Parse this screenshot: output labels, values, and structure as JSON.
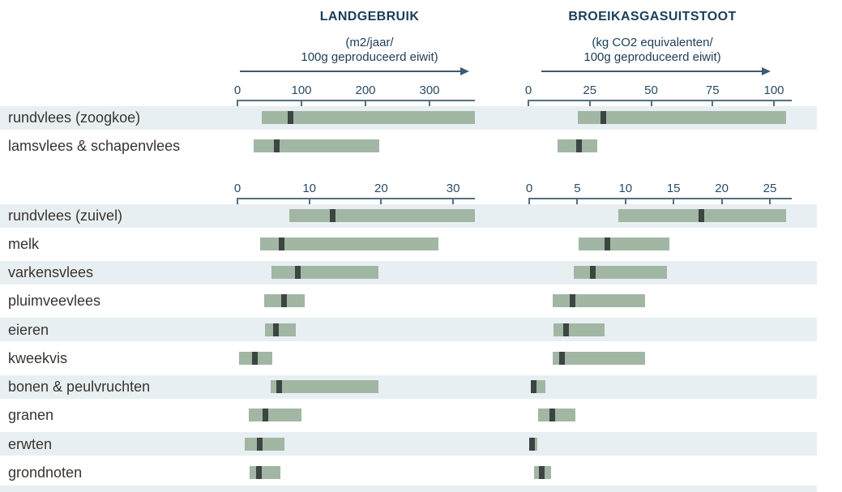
{
  "figure": {
    "columns": {
      "land": {
        "title": "LANDGEBRUIK",
        "unit_line1": "(m2/jaar/",
        "unit_line2": "100g geproduceerd eiwit)"
      },
      "ghg": {
        "title": "BROEIKASGASUITSTOOT",
        "unit_line1": "(kg CO2 equivalenten/",
        "unit_line2": "100g geproduceerd eiwit)"
      }
    },
    "colors": {
      "row_band": "#e8eff2",
      "range_bar": "#a2b6a4",
      "median_marker": "#3d4543",
      "header_text": "#1d3d57",
      "tick_label": "#2c4b63",
      "axis": "#55707f",
      "row_label": "#38332f"
    }
  },
  "chart_data": {
    "type": "range-bar",
    "title": "LANDGEBRUIK vs BROEIKASGASUITSTOOT per 100g geproduceerd eiwit",
    "measures": [
      {
        "id": "land",
        "label": "LANDGEBRUIK",
        "unit": "m2/jaar/100g geproduceerd eiwit"
      },
      {
        "id": "ghg",
        "label": "BROEIKASGASUITSTOOT",
        "unit": "kg CO2 equivalenten/100g geproduceerd eiwit"
      }
    ],
    "groups": [
      {
        "land_ticks": [
          0,
          100,
          200,
          300
        ],
        "ghg_ticks": [
          0,
          25,
          50,
          75,
          100
        ],
        "rows": [
          {
            "label": "rundvlees (zoogkoe)",
            "land": {
              "min": 38,
              "median": 83,
              "max": 372,
              "offscale": true
            },
            "ghg": {
              "min": 20,
              "median": 30.5,
              "max": 105,
              "offscale": true
            }
          },
          {
            "label": "lamsvlees & schapenvlees",
            "land": {
              "min": 25,
              "median": 61,
              "max": 221
            },
            "ghg": {
              "min": 12,
              "median": 20.5,
              "max": 28
            }
          }
        ]
      },
      {
        "land_ticks": [
          0,
          10,
          20,
          30
        ],
        "ghg_ticks": [
          0,
          5,
          10,
          15,
          20,
          25
        ],
        "rows": [
          {
            "label": "rundvlees (zuivel)",
            "land": {
              "min": 7.2,
              "median": 13.2,
              "max": 33,
              "offscale": true
            },
            "ghg": {
              "min": 9.3,
              "median": 17.9,
              "max": 26.7,
              "offscale": true
            }
          },
          {
            "label": "melk",
            "land": {
              "min": 3.2,
              "median": 6.2,
              "max": 28
            },
            "ghg": {
              "min": 5.1,
              "median": 8.1,
              "max": 14.6
            }
          },
          {
            "label": "varkensvlees",
            "land": {
              "min": 4.7,
              "median": 8.4,
              "max": 19.6
            },
            "ghg": {
              "min": 4.6,
              "median": 6.6,
              "max": 14.3
            }
          },
          {
            "label": "pluimveevlees",
            "land": {
              "min": 3.7,
              "median": 6.5,
              "max": 9.4
            },
            "ghg": {
              "min": 2.4,
              "median": 4.5,
              "max": 12
            }
          },
          {
            "label": "eieren",
            "land": {
              "min": 3.8,
              "median": 5.3,
              "max": 8.1
            },
            "ghg": {
              "min": 2.5,
              "median": 3.8,
              "max": 7.8
            }
          },
          {
            "label": "kweekvis",
            "land": {
              "min": 0.2,
              "median": 2.4,
              "max": 4.8
            },
            "ghg": {
              "min": 2.4,
              "median": 3.4,
              "max": 12
            }
          },
          {
            "label": "bonen & peulvruchten",
            "land": {
              "min": 4.6,
              "median": 5.8,
              "max": 19.6
            },
            "ghg": {
              "min": 0.2,
              "median": 0.5,
              "max": 1.7
            }
          },
          {
            "label": "granen",
            "land": {
              "min": 1.6,
              "median": 3.9,
              "max": 8.9
            },
            "ghg": {
              "min": 0.9,
              "median": 2.4,
              "max": 4.8
            }
          },
          {
            "label": "erwten",
            "land": {
              "min": 1,
              "median": 3.1,
              "max": 6.5
            },
            "ghg": {
              "min": 0.05,
              "median": 0.3,
              "max": 0.8
            }
          },
          {
            "label": "grondnoten",
            "land": {
              "min": 1.7,
              "median": 3,
              "max": 6
            },
            "ghg": {
              "min": 0.5,
              "median": 1.3,
              "max": 2.3
            }
          }
        ]
      }
    ],
    "layout_hints": {
      "legend": "none",
      "grid": "off",
      "orientation": "horizontal",
      "marker_meaning": "typical value within min-max range"
    }
  }
}
